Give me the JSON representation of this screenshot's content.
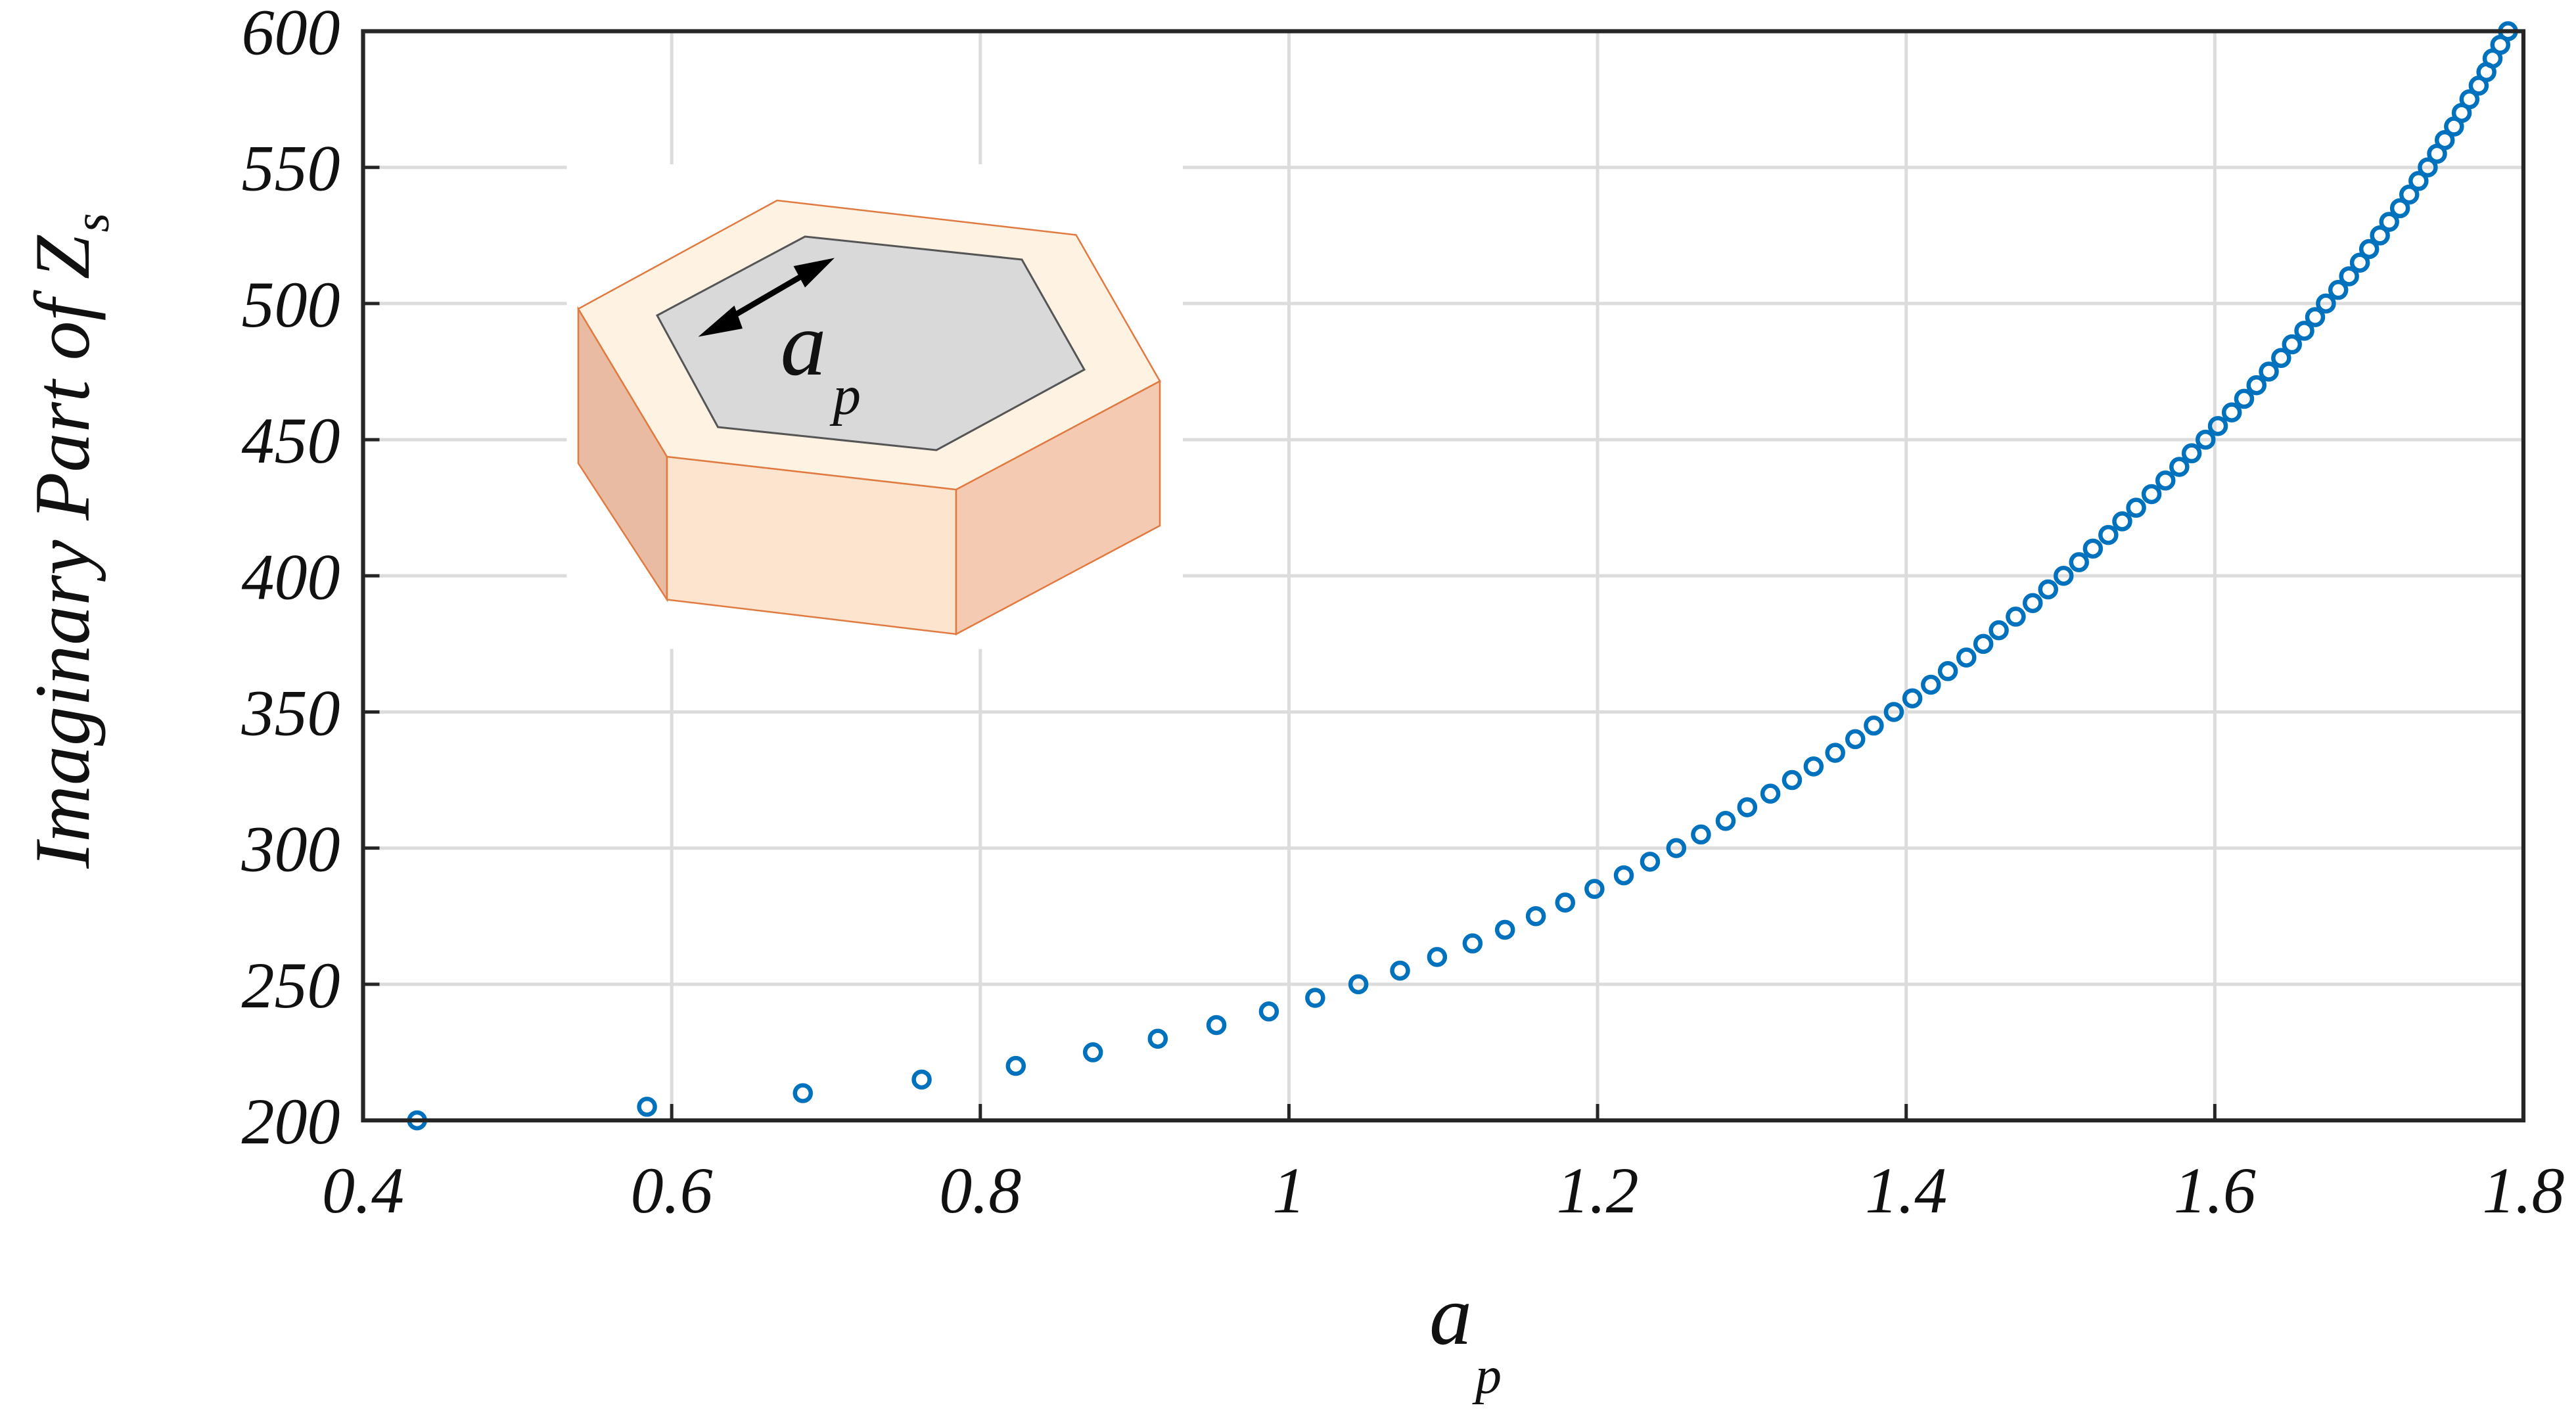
{
  "chart_data": {
    "type": "scatter",
    "ylabel": "Imaginary Part of Z",
    "ylabel_sub": "s",
    "xlabel": "a",
    "xlabel_sub": "p",
    "inset_label": "a",
    "inset_label_sub": "p",
    "series": [
      {
        "color": "#0072bd",
        "x": [
          0.435,
          0.584,
          0.685,
          0.762,
          0.823,
          0.873,
          0.915,
          0.953,
          0.987,
          1.017,
          1.045,
          1.072,
          1.096,
          1.119,
          1.14,
          1.16,
          1.179,
          1.198,
          1.217,
          1.234,
          1.251,
          1.267,
          1.283,
          1.297,
          1.312,
          1.326,
          1.34,
          1.354,
          1.367,
          1.379,
          1.392,
          1.404,
          1.416,
          1.427,
          1.439,
          1.45,
          1.46,
          1.471,
          1.482,
          1.492,
          1.502,
          1.512,
          1.521,
          1.531,
          1.54,
          1.549,
          1.559,
          1.568,
          1.577,
          1.585,
          1.594,
          1.602,
          1.611,
          1.619,
          1.627,
          1.635,
          1.643,
          1.65,
          1.658,
          1.665,
          1.672,
          1.68,
          1.687,
          1.694,
          1.7,
          1.707,
          1.713,
          1.72,
          1.726,
          1.732,
          1.738,
          1.744,
          1.749,
          1.755,
          1.76,
          1.765,
          1.771,
          1.776,
          1.78,
          1.785,
          1.79
        ],
        "values": [
          200,
          205,
          210,
          215,
          220,
          225,
          230,
          235,
          240,
          245,
          250,
          255,
          260,
          265,
          270,
          275,
          280,
          285,
          290,
          295,
          300,
          305,
          310,
          315,
          320,
          325,
          330,
          335,
          340,
          345,
          350,
          355,
          360,
          365,
          370,
          375,
          380,
          385,
          390,
          395,
          400,
          405,
          410,
          415,
          420,
          425,
          430,
          435,
          440,
          445,
          450,
          455,
          460,
          465,
          470,
          475,
          480,
          485,
          490,
          495,
          500,
          505,
          510,
          515,
          520,
          525,
          530,
          535,
          540,
          545,
          550,
          555,
          560,
          565,
          570,
          575,
          580,
          585,
          590,
          595,
          600
        ]
      }
    ],
    "xlim": [
      0.4,
      1.8
    ],
    "xticks": [
      0.4,
      0.6,
      0.8,
      1,
      1.2,
      1.4,
      1.6,
      1.8
    ],
    "ylim": [
      200,
      600
    ],
    "yticks": [
      200,
      250,
      300,
      350,
      400,
      450,
      500,
      550,
      600
    ],
    "grid": true
  }
}
